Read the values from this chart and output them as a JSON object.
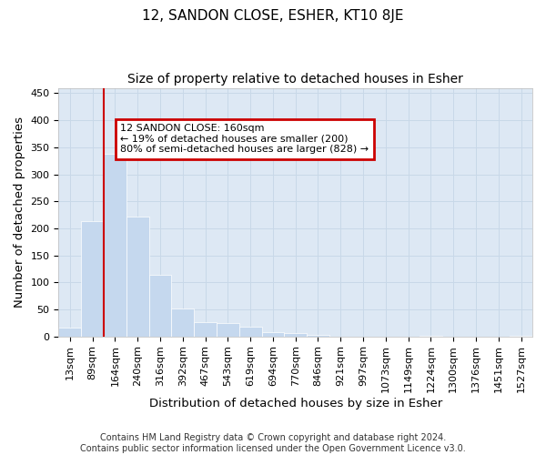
{
  "title": "12, SANDON CLOSE, ESHER, KT10 8JE",
  "subtitle": "Size of property relative to detached houses in Esher",
  "xlabel": "Distribution of detached houses by size in Esher",
  "ylabel": "Number of detached properties",
  "categories": [
    "13sqm",
    "89sqm",
    "164sqm",
    "240sqm",
    "316sqm",
    "392sqm",
    "467sqm",
    "543sqm",
    "619sqm",
    "694sqm",
    "770sqm",
    "846sqm",
    "921sqm",
    "997sqm",
    "1073sqm",
    "1149sqm",
    "1224sqm",
    "1300sqm",
    "1376sqm",
    "1451sqm",
    "1527sqm"
  ],
  "values": [
    17,
    214,
    338,
    221,
    114,
    51,
    26,
    25,
    18,
    8,
    6,
    3,
    0,
    0,
    0,
    0,
    1,
    0,
    0,
    0,
    1
  ],
  "bar_color": "#c5d8ee",
  "bar_edge_color": "#c5d8ee",
  "annotation_text": "12 SANDON CLOSE: 160sqm\n← 19% of detached houses are smaller (200)\n80% of semi-detached houses are larger (828) →",
  "annotation_box_facecolor": "#ffffff",
  "annotation_border_color": "#cc0000",
  "line_color": "#cc0000",
  "grid_color": "#c8d8e8",
  "bg_color": "#dde8f4",
  "footer": "Contains HM Land Registry data © Crown copyright and database right 2024.\nContains public sector information licensed under the Open Government Licence v3.0.",
  "ylim": [
    0,
    460
  ],
  "title_fontsize": 11,
  "subtitle_fontsize": 10,
  "axis_label_fontsize": 9.5,
  "tick_fontsize": 8,
  "footer_fontsize": 7
}
